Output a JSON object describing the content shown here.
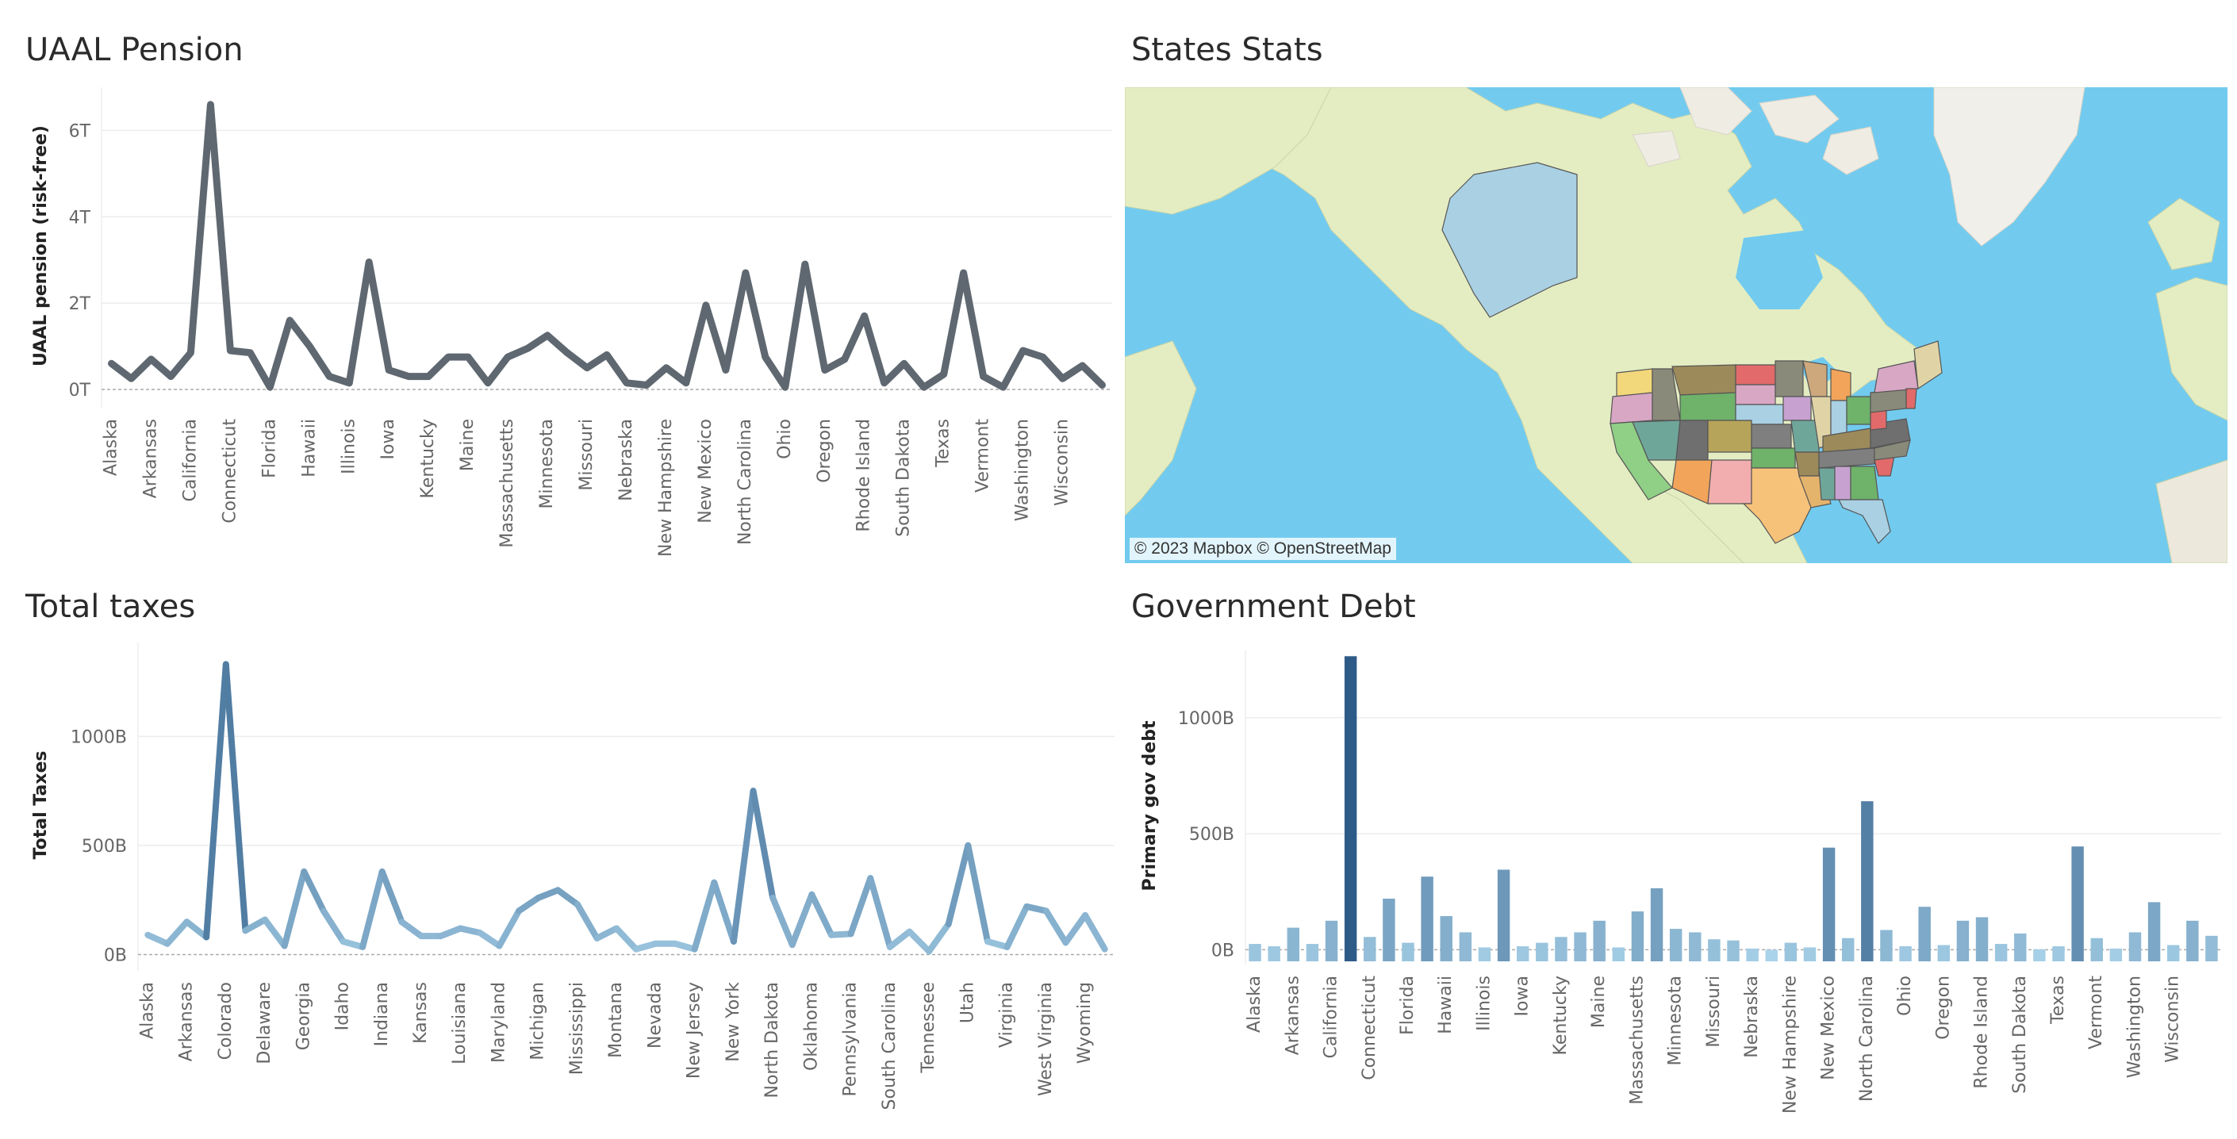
{
  "panels": {
    "uaal_title": "UAAL Pension",
    "map_title": "States Stats",
    "taxes_title": "Total taxes",
    "debt_title": "Government Debt",
    "map_credit": "© 2023 Mapbox © OpenStreetMap"
  },
  "colors": {
    "uaal_line": "#5f6870",
    "taxes_low": "#a9d3ea",
    "taxes_high": "#2e5a87",
    "debt_low": "#a9d3ea",
    "debt_high": "#2e5a87",
    "ocean": "#72cbef",
    "land": "#e4edc2"
  },
  "chart_data": [
    {
      "type": "line",
      "title": "UAAL Pension",
      "ylabel": "UAAL pension (risk-free)",
      "y_ticks": [
        "0T",
        "2T",
        "4T",
        "6T"
      ],
      "ylim": [
        -0.35,
        7.0
      ],
      "unit": "T",
      "x_tick_labels": [
        "Alaska",
        "Arkansas",
        "California",
        "Connecticut",
        "Florida",
        "Hawaii",
        "Illinois",
        "Iowa",
        "Kentucky",
        "Maine",
        "Massachusetts",
        "Minnesota",
        "Missouri",
        "Nebraska",
        "New Hampshire",
        "New Mexico",
        "North Carolina",
        "Ohio",
        "Oregon",
        "Rhode Island",
        "South Dakota",
        "Texas",
        "Vermont",
        "Washington",
        "Wisconsin"
      ],
      "values": [
        0.6,
        0.25,
        0.7,
        0.3,
        0.85,
        6.6,
        0.9,
        0.85,
        0.05,
        1.6,
        1.0,
        0.3,
        0.15,
        2.95,
        0.45,
        0.3,
        0.3,
        0.75,
        0.75,
        0.15,
        0.75,
        0.95,
        1.25,
        0.85,
        0.5,
        0.8,
        0.15,
        0.1,
        0.5,
        0.15,
        1.95,
        0.45,
        2.7,
        0.75,
        0.05,
        2.9,
        0.45,
        0.7,
        1.7,
        0.15,
        0.6,
        0.05,
        0.35,
        2.7,
        0.3,
        0.05,
        0.9,
        0.75,
        0.25,
        0.55,
        0.1
      ]
    },
    {
      "type": "line",
      "title": "Total taxes",
      "ylabel": "Total Taxes",
      "y_ticks": [
        "0B",
        "500B",
        "1000B"
      ],
      "ylim": [
        -60,
        1430
      ],
      "unit": "B",
      "x_tick_labels": [
        "Alaska",
        "Arkansas",
        "Colorado",
        "Delaware",
        "Georgia",
        "Idaho",
        "Indiana",
        "Kansas",
        "Louisiana",
        "Maryland",
        "Michigan",
        "Mississippi",
        "Montana",
        "Nevada",
        "New Jersey",
        "New York",
        "North Dakota",
        "Oklahoma",
        "Pennsylvania",
        "South Carolina",
        "Tennessee",
        "Utah",
        "Virginia",
        "West Virginia",
        "Wyoming"
      ],
      "values": [
        90,
        50,
        150,
        80,
        1330,
        110,
        160,
        40,
        380,
        200,
        60,
        35,
        380,
        150,
        85,
        85,
        120,
        100,
        40,
        200,
        260,
        295,
        230,
        75,
        120,
        25,
        50,
        50,
        25,
        330,
        60,
        750,
        260,
        45,
        275,
        90,
        95,
        350,
        35,
        105,
        15,
        140,
        500,
        60,
        35,
        220,
        200,
        55,
        180,
        25
      ]
    },
    {
      "type": "bar",
      "title": "Government Debt",
      "ylabel": "Primary gov debt",
      "y_ticks": [
        "0B",
        "500B",
        "1000B"
      ],
      "ylim": [
        -50,
        1290
      ],
      "unit": "B",
      "x_tick_labels": [
        "Alaska",
        "Arkansas",
        "California",
        "Connecticut",
        "Florida",
        "Hawaii",
        "Illinois",
        "Iowa",
        "Kentucky",
        "Maine",
        "Massachusetts",
        "Minnesota",
        "Missouri",
        "Nebraska",
        "New Hampshire",
        "New Mexico",
        "North Carolina",
        "Ohio",
        "Oregon",
        "Rhode Island",
        "South Dakota",
        "Texas",
        "Vermont",
        "Washington",
        "Wisconsin"
      ],
      "values": [
        25,
        15,
        95,
        25,
        125,
        1265,
        55,
        220,
        30,
        315,
        145,
        75,
        10,
        345,
        15,
        30,
        55,
        75,
        125,
        10,
        165,
        265,
        90,
        75,
        45,
        40,
        5,
        0,
        30,
        10,
        440,
        50,
        640,
        85,
        15,
        185,
        20,
        125,
        140,
        25,
        70,
        2,
        15,
        445,
        50,
        5,
        75,
        205,
        20,
        125,
        60
      ]
    }
  ]
}
